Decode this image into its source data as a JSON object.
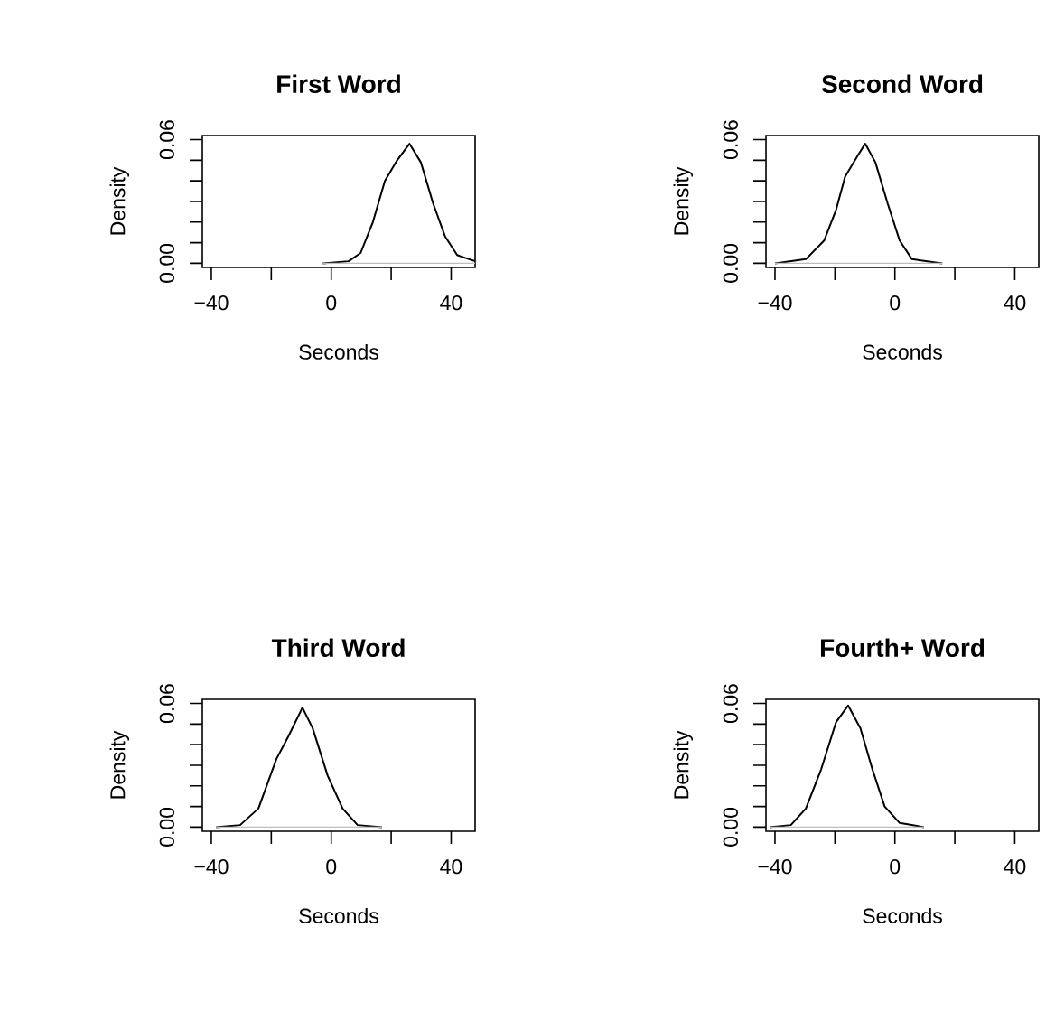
{
  "chart_data": [
    {
      "type": "line",
      "title": "First Word",
      "xlabel": "Seconds",
      "ylabel": "Density",
      "x": [
        -2.8,
        5.8,
        9.8,
        13.9,
        17.9,
        22,
        26.1,
        29.9,
        34,
        38,
        42,
        48
      ],
      "series": [
        {
          "color": "#000000",
          "values": [
            0,
            0.001,
            0.005,
            0.02,
            0.04,
            0.05,
            0.058,
            0.049,
            0.029,
            0.013,
            0.004,
            0.001
          ]
        },
        {
          "color": "#bebebe",
          "x": [
            -2.8,
            48
          ],
          "values": [
            0,
            0
          ]
        }
      ],
      "xlim": [
        -43,
        48
      ],
      "ylim": [
        -0.002,
        0.062
      ],
      "xticks": [
        {
          "value": -40,
          "label": "−40"
        },
        {
          "value": -20,
          "label": null
        },
        0,
        {
          "value": 20,
          "label": null
        },
        40
      ],
      "yticks": [
        {
          "value": 0,
          "label": "0.00"
        },
        {
          "value": 0.01,
          "label": null
        },
        {
          "value": 0.02,
          "label": null
        },
        {
          "value": 0.03,
          "label": null
        },
        {
          "value": 0.04,
          "label": null
        },
        {
          "value": 0.05,
          "label": null
        },
        {
          "value": 0.06,
          "label": "0.06"
        }
      ],
      "line_style": "solid",
      "marker": "none",
      "grid": false
    },
    {
      "type": "line",
      "title": "Second Word",
      "xlabel": "Seconds",
      "ylabel": "Density",
      "x": [
        -40,
        -29.7,
        -23.6,
        -19.6,
        -16.6,
        -12.5,
        -9.9,
        -6.5,
        -2.4,
        1.6,
        5.7,
        15.8
      ],
      "series": [
        {
          "color": "#000000",
          "values": [
            0,
            0.002,
            0.011,
            0.026,
            0.042,
            0.052,
            0.058,
            0.049,
            0.029,
            0.011,
            0.002,
            0
          ]
        },
        {
          "color": "#bebebe",
          "x": [
            -40,
            15.8
          ],
          "values": [
            0,
            0
          ]
        }
      ],
      "xlim": [
        -43,
        48
      ],
      "ylim": [
        -0.002,
        0.062
      ],
      "xticks": [
        {
          "value": -40,
          "label": "−40"
        },
        {
          "value": -20,
          "label": null
        },
        0,
        {
          "value": 20,
          "label": null
        },
        40
      ],
      "yticks": [
        {
          "value": 0,
          "label": "0.00"
        },
        {
          "value": 0.01,
          "label": null
        },
        {
          "value": 0.02,
          "label": null
        },
        {
          "value": 0.03,
          "label": null
        },
        {
          "value": 0.04,
          "label": null
        },
        {
          "value": 0.05,
          "label": null
        },
        {
          "value": 0.06,
          "label": "0.06"
        }
      ],
      "line_style": "solid",
      "marker": "none",
      "grid": false
    },
    {
      "type": "line",
      "title": "Third Word",
      "xlabel": "Seconds",
      "ylabel": "Density",
      "x": [
        -38.4,
        -30.4,
        -24.3,
        -18.3,
        -14.3,
        -9.6,
        -6.2,
        -1.2,
        3.8,
        8.8,
        16.9
      ],
      "series": [
        {
          "color": "#000000",
          "values": [
            0,
            0.001,
            0.009,
            0.033,
            0.044,
            0.058,
            0.048,
            0.025,
            0.009,
            0.001,
            0
          ]
        },
        {
          "color": "#bebebe",
          "x": [
            -38.4,
            16.9
          ],
          "values": [
            0,
            0
          ]
        }
      ],
      "xlim": [
        -43,
        48
      ],
      "ylim": [
        -0.002,
        0.062
      ],
      "xticks": [
        {
          "value": -40,
          "label": "−40"
        },
        {
          "value": -20,
          "label": null
        },
        0,
        {
          "value": 20,
          "label": null
        },
        40
      ],
      "yticks": [
        {
          "value": 0,
          "label": "0.00"
        },
        {
          "value": 0.01,
          "label": null
        },
        {
          "value": 0.02,
          "label": null
        },
        {
          "value": 0.03,
          "label": null
        },
        {
          "value": 0.04,
          "label": null
        },
        {
          "value": 0.05,
          "label": null
        },
        {
          "value": 0.06,
          "label": "0.06"
        }
      ],
      "line_style": "solid",
      "marker": "none",
      "grid": false
    },
    {
      "type": "line",
      "title": "Fourth+ Word",
      "xlabel": "Seconds",
      "ylabel": "Density",
      "x": [
        -41.8,
        -34.7,
        -29.7,
        -24.6,
        -19.6,
        -15.6,
        -11.5,
        -7.5,
        -3.4,
        1.6,
        9.7
      ],
      "series": [
        {
          "color": "#000000",
          "values": [
            0,
            0.001,
            0.009,
            0.028,
            0.051,
            0.059,
            0.048,
            0.028,
            0.01,
            0.002,
            0
          ]
        },
        {
          "color": "#bebebe",
          "x": [
            -41.8,
            9.7
          ],
          "values": [
            0,
            0
          ]
        }
      ],
      "xlim": [
        -43,
        48
      ],
      "ylim": [
        -0.002,
        0.062
      ],
      "xticks": [
        {
          "value": -40,
          "label": "−40"
        },
        {
          "value": -20,
          "label": null
        },
        0,
        {
          "value": 20,
          "label": null
        },
        40
      ],
      "yticks": [
        {
          "value": 0,
          "label": "0.00"
        },
        {
          "value": 0.01,
          "label": null
        },
        {
          "value": 0.02,
          "label": null
        },
        {
          "value": 0.03,
          "label": null
        },
        {
          "value": 0.04,
          "label": null
        },
        {
          "value": 0.05,
          "label": null
        },
        {
          "value": 0.06,
          "label": "0.06"
        }
      ],
      "line_style": "solid",
      "marker": "none",
      "grid": false
    }
  ]
}
